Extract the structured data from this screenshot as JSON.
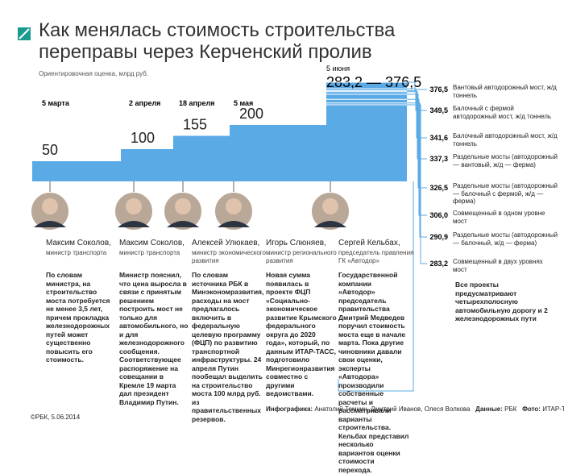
{
  "title": "Как менялась стоимость строительства переправы через Керченский пролив",
  "subtitle": "Ориентировочная оценка, млрд руб.",
  "steps": [
    {
      "date": "5 марта",
      "value": 50
    },
    {
      "date": "2 апреля",
      "value": 100
    },
    {
      "date": "18 апреля",
      "value": 155
    },
    {
      "date": "5 мая",
      "value": 200
    }
  ],
  "final": {
    "date": "5 июня",
    "range": [
      283.2,
      376.5
    ],
    "range_label": "283,2 — 376,5"
  },
  "options": [
    {
      "value": 376.5,
      "label": "376,5",
      "text": "Вантовый автодорожный мост, ж/д тоннель"
    },
    {
      "value": 349.5,
      "label": "349,5",
      "text": "Балочный с фермой автодорожный мост, ж/д тоннель"
    },
    {
      "value": 341.6,
      "label": "341,6",
      "text": "Балочный автодорожный мост, ж/д тоннель"
    },
    {
      "value": 337.3,
      "label": "337,3",
      "text": "Раздельные мосты (автодорожный — вантовый, ж/д — ферма)"
    },
    {
      "value": 326.5,
      "label": "326,5",
      "text": "Раздельные мосты (автодорожный — балочный с фермой, ж/д — ферма)"
    },
    {
      "value": 306.0,
      "label": "306,0",
      "text": "Совмещенный в одном уровне мост"
    },
    {
      "value": 290.9,
      "label": "290,9",
      "text": "Раздельные мосты (автодорожный — балочный, ж/д — ферма)"
    },
    {
      "value": 283.2,
      "label": "283,2",
      "text": "Совмещенный в двух уровнях мост"
    }
  ],
  "note": "Все проекты предусматривают четырехполосную автомобильную дорогу и 2 железнодорожных пути",
  "people": [
    {
      "name": "Максим Соколов,",
      "position": "министр транспорта",
      "quote": "По словам министра, на строительство моста потребуется не менее 3,5 лет, причем прокладка железнодорожных путей может существенно повысить его стоимость."
    },
    {
      "name": "Максим Соколов,",
      "position": "министр транспорта",
      "quote": "Министр пояснил, что цена выросла в связи с принятым решением построить мост не только для автомобильного, но и для железнодорожного сообщения. Соответствующее распоряжение на совещании в Кремле 19 марта дал президент Владимир Путин."
    },
    {
      "name": "Алексей Улюкаев,",
      "position": "министр экономического развития",
      "quote": "По словам источника РБК в Минэкономразвития, расходы на мост предлагалось включить в федеральную целевую программу (ФЦП) по развитию транспортной инфраструктуры. 24 апреля Путин пообещал выделить на строительство моста 100 млрд руб. из правительственных резервов."
    },
    {
      "name": "Игорь Слюняев,",
      "position": "министр регионального развития",
      "quote": "Новая сумма появилась в проекте ФЦП «Социально-экономическое развитие Крымского федерального округа до 2020 года», который, по данным ИТАР-ТАСС, подготовило Минрегионразвития совместно с другими ведомствами."
    },
    {
      "name": "Сергей Кельбах,",
      "position": "председатель правления ГК «Автодор»",
      "quote": "Государственной компании «Автодор» председатель правительства Дмитрий Медведев поручил стоимость моста еще в начале марта. Пока другие чиновники давали свои оценки, эксперты «Автодора» производили собственные расчеты и рассматривали варианты строительства. Кельбах представил несколько вариантов оценки стоимости перехода."
    }
  ],
  "credit": "©РБК, 5.06.2014",
  "infographic_label": "Инфографика:",
  "infographic_authors": "Анатолий Темнин, Дмитрий Иванов, Олеся Волкова",
  "data_label": "Данные:",
  "data_source": "РБК",
  "photo_label": "Фото:",
  "photo_source": "ИТАР-ТАСС"
}
